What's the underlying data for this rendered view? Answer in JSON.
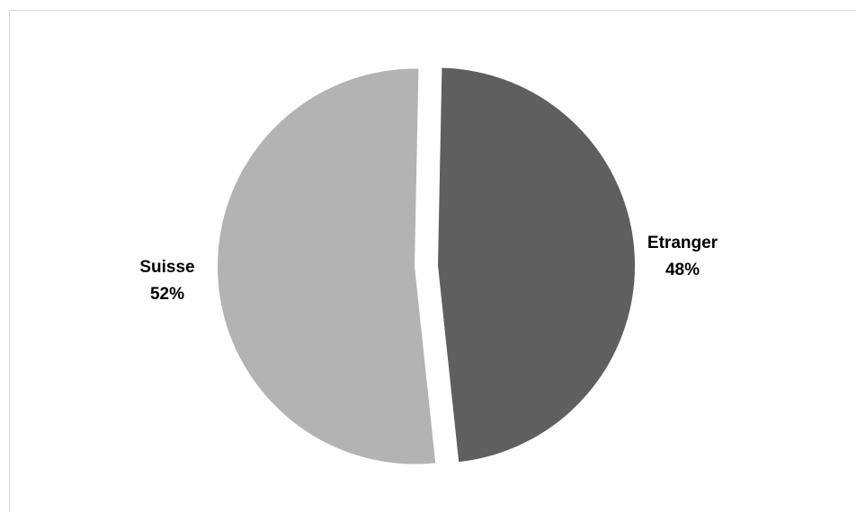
{
  "chart_data": {
    "type": "pie",
    "categories": [
      "Etranger",
      "Suisse"
    ],
    "values": [
      48,
      52
    ],
    "labels": [
      {
        "category": "Etranger",
        "percent": "48%"
      },
      {
        "category": "Suisse",
        "percent": "52%"
      }
    ],
    "colors": [
      "#5f5f5f",
      "#b3b3b3"
    ],
    "exploded": true,
    "legend": "none"
  }
}
